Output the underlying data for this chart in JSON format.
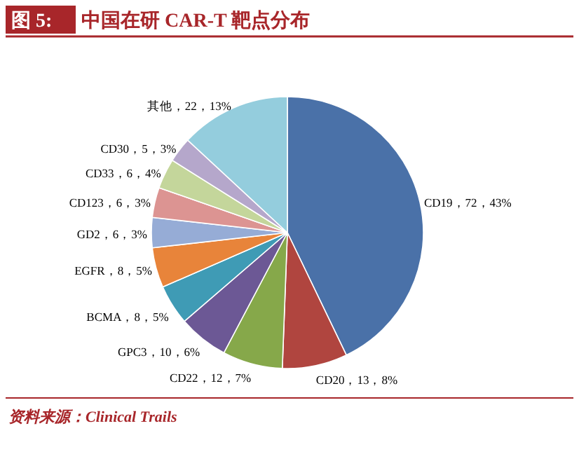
{
  "chart_data": {
    "type": "pie",
    "title": "图 5:  中国在研 CAR-T 靶点分布",
    "categories": [
      "CD19",
      "CD20",
      "CD22",
      "GPC3",
      "BCMA",
      "EGFR",
      "GD2",
      "CD123",
      "CD33",
      "CD30",
      "其他"
    ],
    "values": [
      72,
      13,
      12,
      10,
      8,
      8,
      6,
      6,
      6,
      5,
      22
    ],
    "colors": [
      "#4a71a8",
      "#b0453f",
      "#86a84a",
      "#6c5895",
      "#3f9bb5",
      "#e8843a",
      "#96acd6",
      "#dc9492",
      "#c4d69b",
      "#b5a7cb",
      "#94cddd"
    ],
    "value_labels": [
      "，72，43%",
      "，13，8%",
      "，12，7%",
      "，10，6%",
      "，8，5%",
      "，8，5%",
      "，6，3%",
      "，6，3%",
      "，6，4%",
      "，5，3%",
      "，22，13%"
    ],
    "annotations": [
      "资料来源：Clinical Trails"
    ]
  }
}
